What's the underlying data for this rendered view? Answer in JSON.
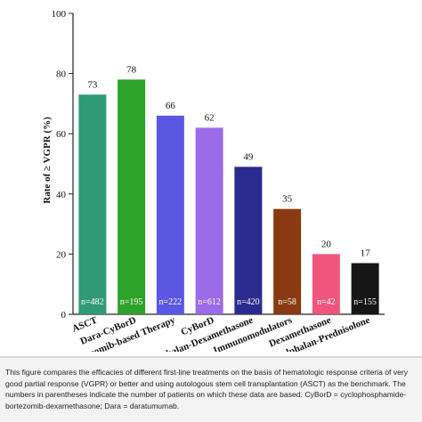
{
  "chart_data": {
    "type": "bar",
    "ylabel": "Rate of ≥ VGPR (%)",
    "ylim": [
      0,
      100
    ],
    "yticks": [
      0,
      20,
      40,
      60,
      80,
      100
    ],
    "categories": [
      "ASCT",
      "Dara-CyBorD",
      "Bortezomib-based Therapy",
      "CyBorD",
      "Melphalan-Dexamethasone",
      "Immunomodulators",
      "Dexamethasone",
      "Melphalan-Prednisolone"
    ],
    "values": [
      73,
      78,
      66,
      62,
      49,
      35,
      20,
      17
    ],
    "data_labels": [
      "73",
      "78",
      "66",
      "62",
      "49",
      "35",
      "20",
      "17"
    ],
    "n_labels": [
      "n=482",
      "n=195",
      "n=222",
      "n=612",
      "n=420",
      "n=58",
      "n=42",
      "n=155"
    ],
    "colors": [
      "#2f9a75",
      "#2ea22a",
      "#5b57e3",
      "#9b6be8",
      "#2b2a8e",
      "#8a3a12",
      "#f0567d",
      "#161616"
    ],
    "grid": false,
    "legend": "none"
  },
  "caption": {
    "text": "This figure compares the efficacies of different first-line treatments on the basis of hematologic response criteria of very good partial response (VGPR) or better and using autologous stem cell transplantation (ASCT) as the benchmark. The numbers in parentheses indicate the number of patients on which these data are based. CyBorD = cyclophosphamide-bortezomib-dexamethasone; Dara = daratumumab."
  }
}
